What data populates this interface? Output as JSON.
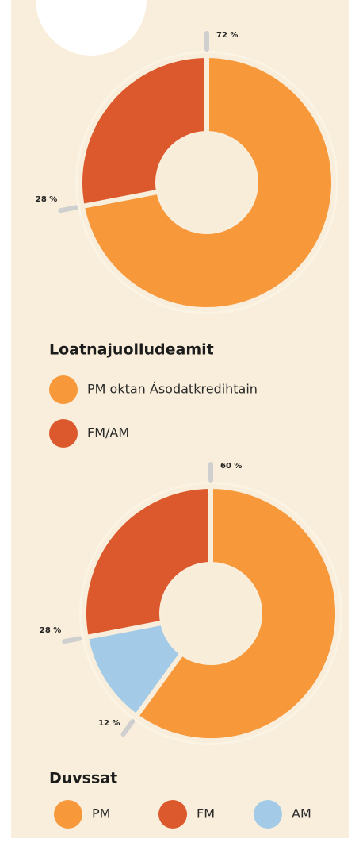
{
  "chart_data": [
    {
      "type": "donut",
      "legend_title": "Loatnajuolludeamit",
      "categories": [
        "PM oktan Ásodatkredihtain",
        "FM/AM"
      ],
      "values": [
        72,
        28
      ],
      "value_labels": [
        "72 %",
        "28 %"
      ],
      "colors": [
        "#f7983a",
        "#dc592d"
      ]
    },
    {
      "type": "donut",
      "legend_title": "Duvssat",
      "categories": [
        "PM",
        "AM",
        "FM"
      ],
      "values": [
        60,
        12,
        28
      ],
      "value_labels": [
        "60 %",
        "12 %",
        "28 %"
      ],
      "colors": [
        "#f7983a",
        "#a3cbe8",
        "#dc592d"
      ]
    }
  ]
}
